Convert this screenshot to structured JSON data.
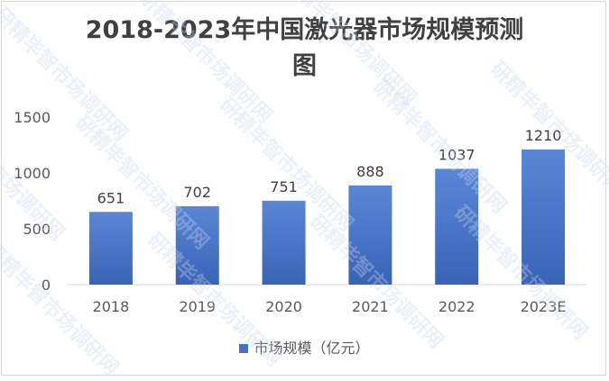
{
  "chart_data": {
    "type": "bar",
    "title": "2018-2023年中国激光器市场规模预测图",
    "title_lines": [
      "2018-2023年中国激光器市场规模预测",
      "图"
    ],
    "categories": [
      "2018",
      "2019",
      "2020",
      "2021",
      "2022",
      "2023E"
    ],
    "series": [
      {
        "name": "市场规模（亿元）",
        "values": [
          651,
          702,
          751,
          888,
          1037,
          1210
        ],
        "color": "#4472c4"
      }
    ],
    "data_labels": [
      "651",
      "702",
      "751",
      "888",
      "1037",
      "1210"
    ],
    "y_ticks": [
      0,
      500,
      1000,
      1500
    ],
    "y_tick_labels": [
      "0",
      "500",
      "1000",
      "1500"
    ],
    "ylim": [
      0,
      1500
    ],
    "xlabel": "",
    "ylabel": "",
    "grid": false,
    "legend_position": "bottom"
  },
  "watermark": "研精毕智市场调研网"
}
